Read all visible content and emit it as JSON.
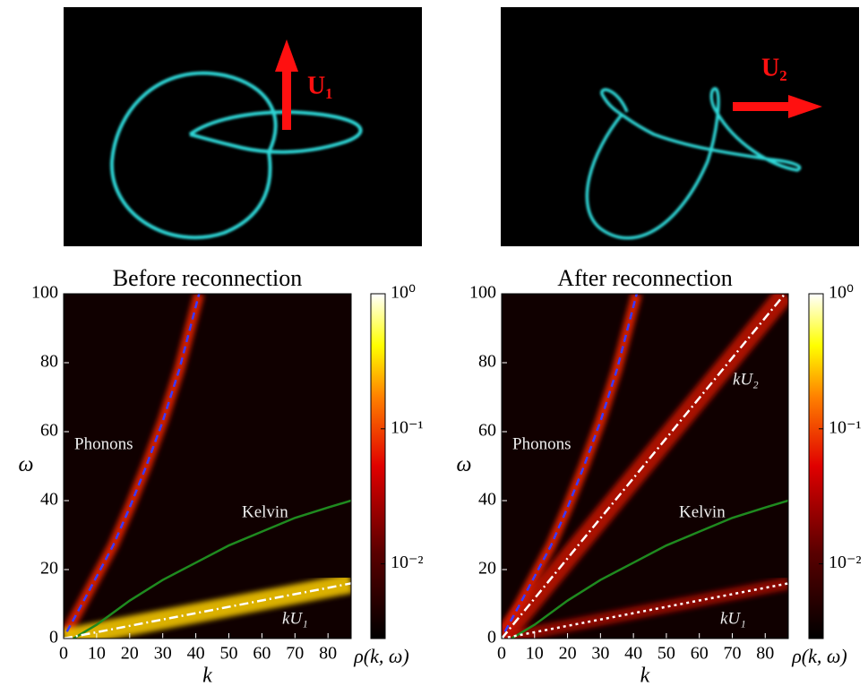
{
  "images": [
    {
      "label": "U₁"
    },
    {
      "label": "U₂"
    }
  ],
  "chart_data": [
    {
      "type": "line",
      "title": "Before reconnection",
      "x_label": "k",
      "y_label": "ω",
      "xlim": [
        0,
        87
      ],
      "ylim": [
        0,
        100
      ],
      "xticks": [
        0,
        10,
        20,
        30,
        40,
        50,
        60,
        70,
        80
      ],
      "yticks": [
        0,
        20,
        40,
        60,
        80,
        100
      ],
      "series": [
        {
          "name": "Phonons",
          "color": "#3a3aff",
          "dash": "dashed",
          "x": [
            1,
            5,
            10,
            15,
            20,
            25,
            30,
            35,
            41
          ],
          "values": [
            2,
            9,
            18,
            27,
            38,
            50,
            63,
            78,
            100
          ]
        },
        {
          "name": "Kelvin",
          "color": "#1f8a1f",
          "dash": "solid",
          "x": [
            3,
            10,
            20,
            30,
            40,
            50,
            60,
            70,
            80,
            87
          ],
          "values": [
            0,
            4,
            11,
            17,
            22,
            27,
            31,
            35,
            38,
            40
          ]
        },
        {
          "name": "kU₁",
          "color": "#ffffff",
          "dash": "dashdot",
          "x": [
            0,
            87
          ],
          "values": [
            0,
            16
          ]
        }
      ],
      "colorbar": {
        "label": "ρ(k, ω)",
        "scale": "log",
        "ylim": [
          0.0028,
          1
        ],
        "ticks": [
          {
            "value": 1,
            "label": "10⁰"
          },
          {
            "value": 0.1,
            "label": "10⁻¹"
          },
          {
            "value": 0.01,
            "label": "10⁻²"
          }
        ]
      }
    },
    {
      "type": "line",
      "title": "After reconnection",
      "x_label": "k",
      "y_label": "ω",
      "xlim": [
        0,
        87
      ],
      "ylim": [
        0,
        100
      ],
      "xticks": [
        0,
        10,
        20,
        30,
        40,
        50,
        60,
        70,
        80
      ],
      "yticks": [
        0,
        20,
        40,
        60,
        80,
        100
      ],
      "series": [
        {
          "name": "Phonons",
          "color": "#3a3aff",
          "dash": "dashed",
          "x": [
            1,
            5,
            10,
            15,
            20,
            25,
            30,
            35,
            41
          ],
          "values": [
            2,
            9,
            18,
            27,
            38,
            50,
            63,
            78,
            100
          ]
        },
        {
          "name": "Kelvin",
          "color": "#1f8a1f",
          "dash": "solid",
          "x": [
            3,
            10,
            20,
            30,
            40,
            50,
            60,
            70,
            80,
            87
          ],
          "values": [
            0,
            4,
            11,
            17,
            22,
            27,
            31,
            35,
            38,
            40
          ]
        },
        {
          "name": "kU₂",
          "color": "#ffffff",
          "dash": "dashdot",
          "x": [
            0,
            86
          ],
          "values": [
            0,
            100
          ]
        },
        {
          "name": "kU₁",
          "color": "#ffffff",
          "dash": "dotted",
          "x": [
            0,
            87
          ],
          "values": [
            0,
            16
          ]
        }
      ],
      "colorbar": {
        "label": "ρ(k, ω)",
        "scale": "log",
        "ylim": [
          0.0028,
          1
        ],
        "ticks": [
          {
            "value": 1,
            "label": "10⁰"
          },
          {
            "value": 0.1,
            "label": "10⁻¹"
          },
          {
            "value": 0.01,
            "label": "10⁻²"
          }
        ]
      }
    }
  ]
}
